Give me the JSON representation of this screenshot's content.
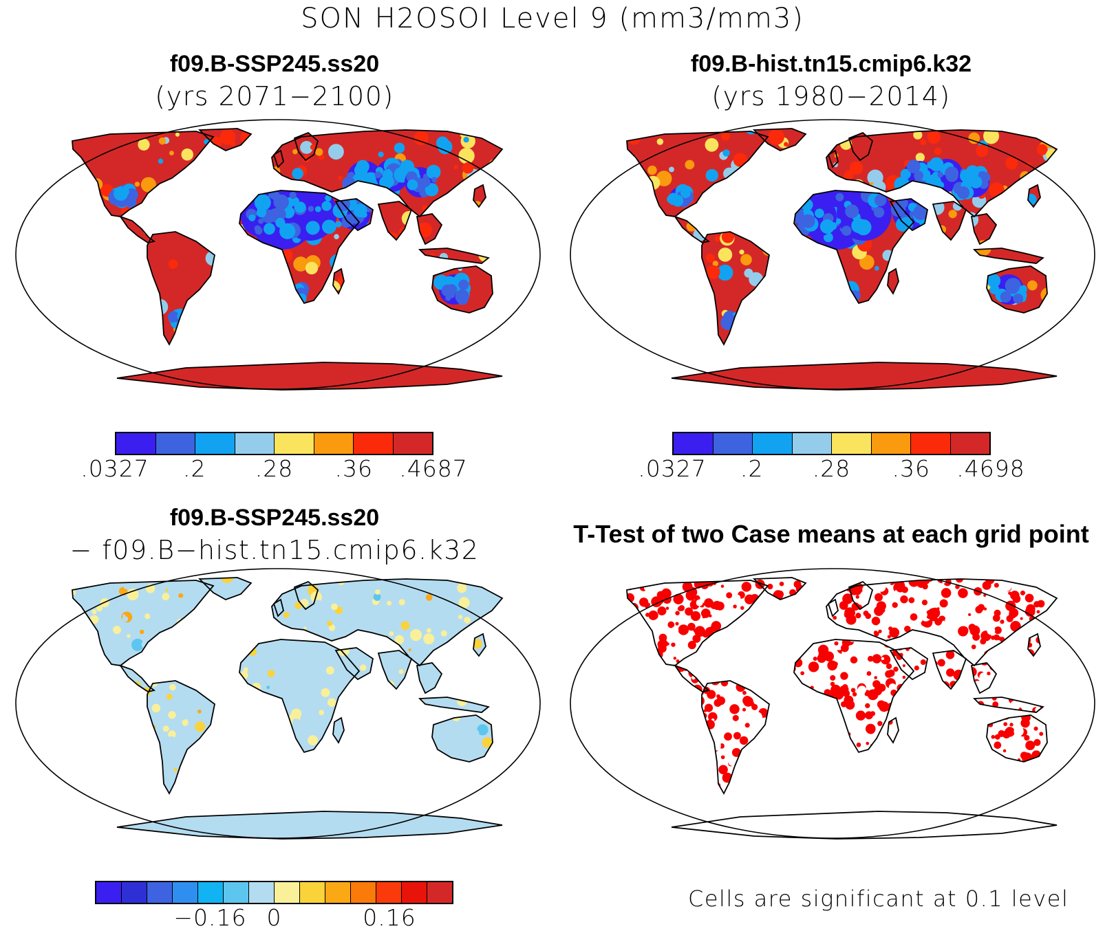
{
  "figure_title": "SON H2OSOI Level 9 (mm3/mm3)",
  "panels": [
    {
      "case": "f09.B-SSP245.ss20",
      "subtitle": "(yrs 2071−2100)",
      "type": "mean",
      "colorbar": {
        "colors": [
          "#3a1ff0",
          "#3d63e0",
          "#11a3f2",
          "#94cdeb",
          "#fae45e",
          "#fa9a0e",
          "#fa2a0a",
          "#d42828"
        ],
        "labels": [
          ".0327",
          ".2",
          ".28",
          ".36",
          ".4687"
        ]
      }
    },
    {
      "case": "f09.B-hist.tn15.cmip6.k32",
      "subtitle": "(yrs 1980−2014)",
      "type": "mean",
      "colorbar": {
        "colors": [
          "#3a1ff0",
          "#3d63e0",
          "#11a3f2",
          "#94cdeb",
          "#fae45e",
          "#fa9a0e",
          "#fa2a0a",
          "#d42828"
        ],
        "labels": [
          ".0327",
          ".2",
          ".28",
          ".36",
          ".4698"
        ]
      }
    },
    {
      "case": "f09.B-SSP245.ss20",
      "subtitle": "− f09.B−hist.tn15.cmip6.k32",
      "type": "difference",
      "colorbar": {
        "colors": [
          "#3a1ff0",
          "#2f2fd6",
          "#3d63e0",
          "#2f8ff0",
          "#11b3f2",
          "#5dc6ee",
          "#b4dcf0",
          "#faf09a",
          "#fad23a",
          "#faa814",
          "#fa7a0a",
          "#fa3a0a",
          "#e8140a",
          "#d42828"
        ],
        "labels": [
          "−0.16",
          "0",
          "0.16"
        ]
      }
    },
    {
      "title": "T-Test of two Case means at each grid point",
      "note": "Cells are significant at 0.1 level",
      "type": "ttest",
      "sig_color": "#f80000"
    }
  ]
}
